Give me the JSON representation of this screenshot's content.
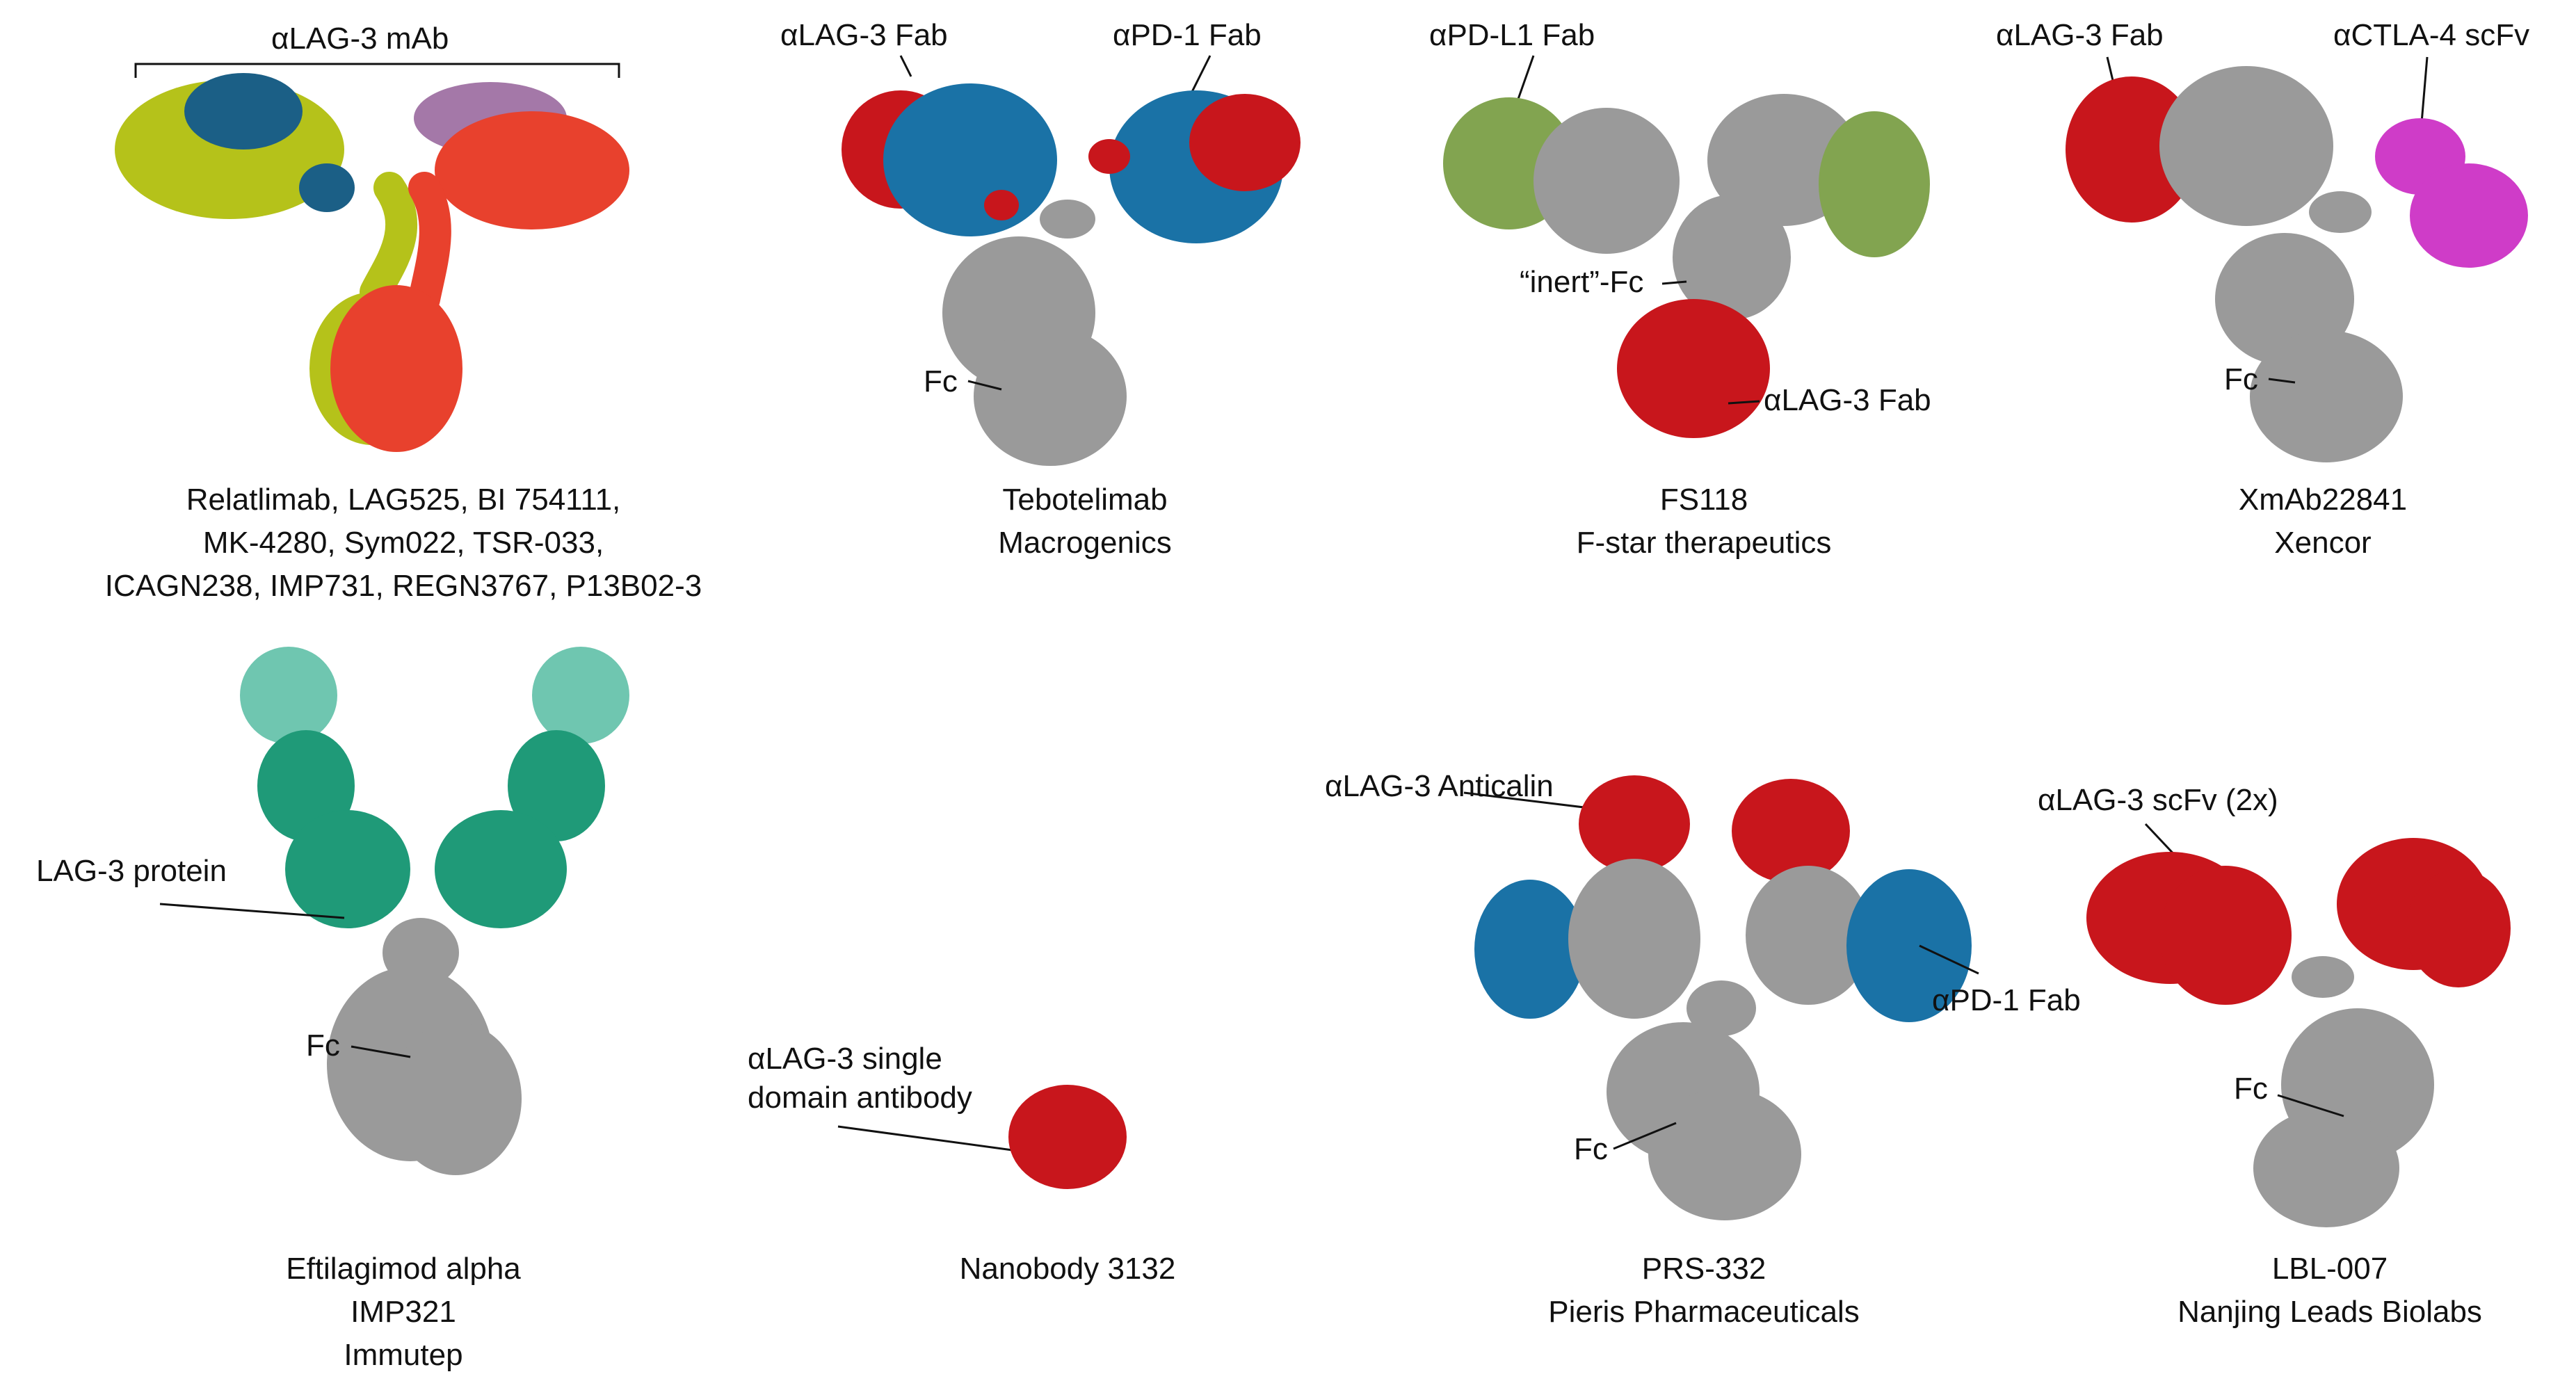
{
  "colors": {
    "gray": "#9a9a9a",
    "gray_light": "#b0b0b0",
    "red": "#c8161c",
    "red_dark": "#a01015",
    "orange_red": "#e8412d",
    "yellow_green": "#b5c21a",
    "navy_blue": "#1b5f86",
    "purple": "#a478a8",
    "blue": "#1a72a6",
    "olive_green": "#82a450",
    "magenta": "#cf3cc8",
    "teal": "#1f9a78",
    "teal_light": "#6fc6b0"
  },
  "panels": {
    "mab": {
      "bracket_label": "αLAG-3 mAb",
      "caption": [
        "Relatlimab, LAG525, BI 754111,",
        "MK-4280, Sym022, TSR-033,",
        "ICAGN238, IMP731, REGN3767, P13B02-3"
      ]
    },
    "tebotelimab": {
      "fab_left_label": "αLAG-3 Fab",
      "fab_right_label": "αPD-1 Fab",
      "fc_label": "Fc",
      "caption": [
        "Tebotelimab",
        "Macrogenics"
      ]
    },
    "fs118": {
      "fab_label": "αPD-L1 Fab",
      "fc_label": "“inert”-Fc",
      "lag3_label": "αLAG-3 Fab",
      "caption": [
        "FS118",
        "F-star therapeutics"
      ]
    },
    "xmab": {
      "fab_label": "αLAG-3 Fab",
      "scfv_label": "αCTLA-4 scFv",
      "fc_label": "Fc",
      "caption": [
        "XmAb22841",
        "Xencor"
      ]
    },
    "eftilagimod": {
      "protein_label": "LAG-3 protein",
      "fc_label": "Fc",
      "caption": [
        "Eftilagimod alpha",
        "IMP321",
        "Immutep"
      ]
    },
    "nanobody": {
      "label": [
        "αLAG-3 single",
        "domain antibody"
      ],
      "caption": [
        "Nanobody 3132"
      ]
    },
    "prs332": {
      "anticalin_label": "αLAG-3 Anticalin",
      "fab_label": "αPD-1 Fab",
      "fc_label": "Fc",
      "caption": [
        "PRS-332",
        "Pieris Pharmaceuticals"
      ]
    },
    "lbl007": {
      "scfv_label": "αLAG-3 scFv (2x)",
      "fc_label": "Fc",
      "caption": [
        "LBL-007",
        "Nanjing Leads Biolabs"
      ]
    }
  }
}
